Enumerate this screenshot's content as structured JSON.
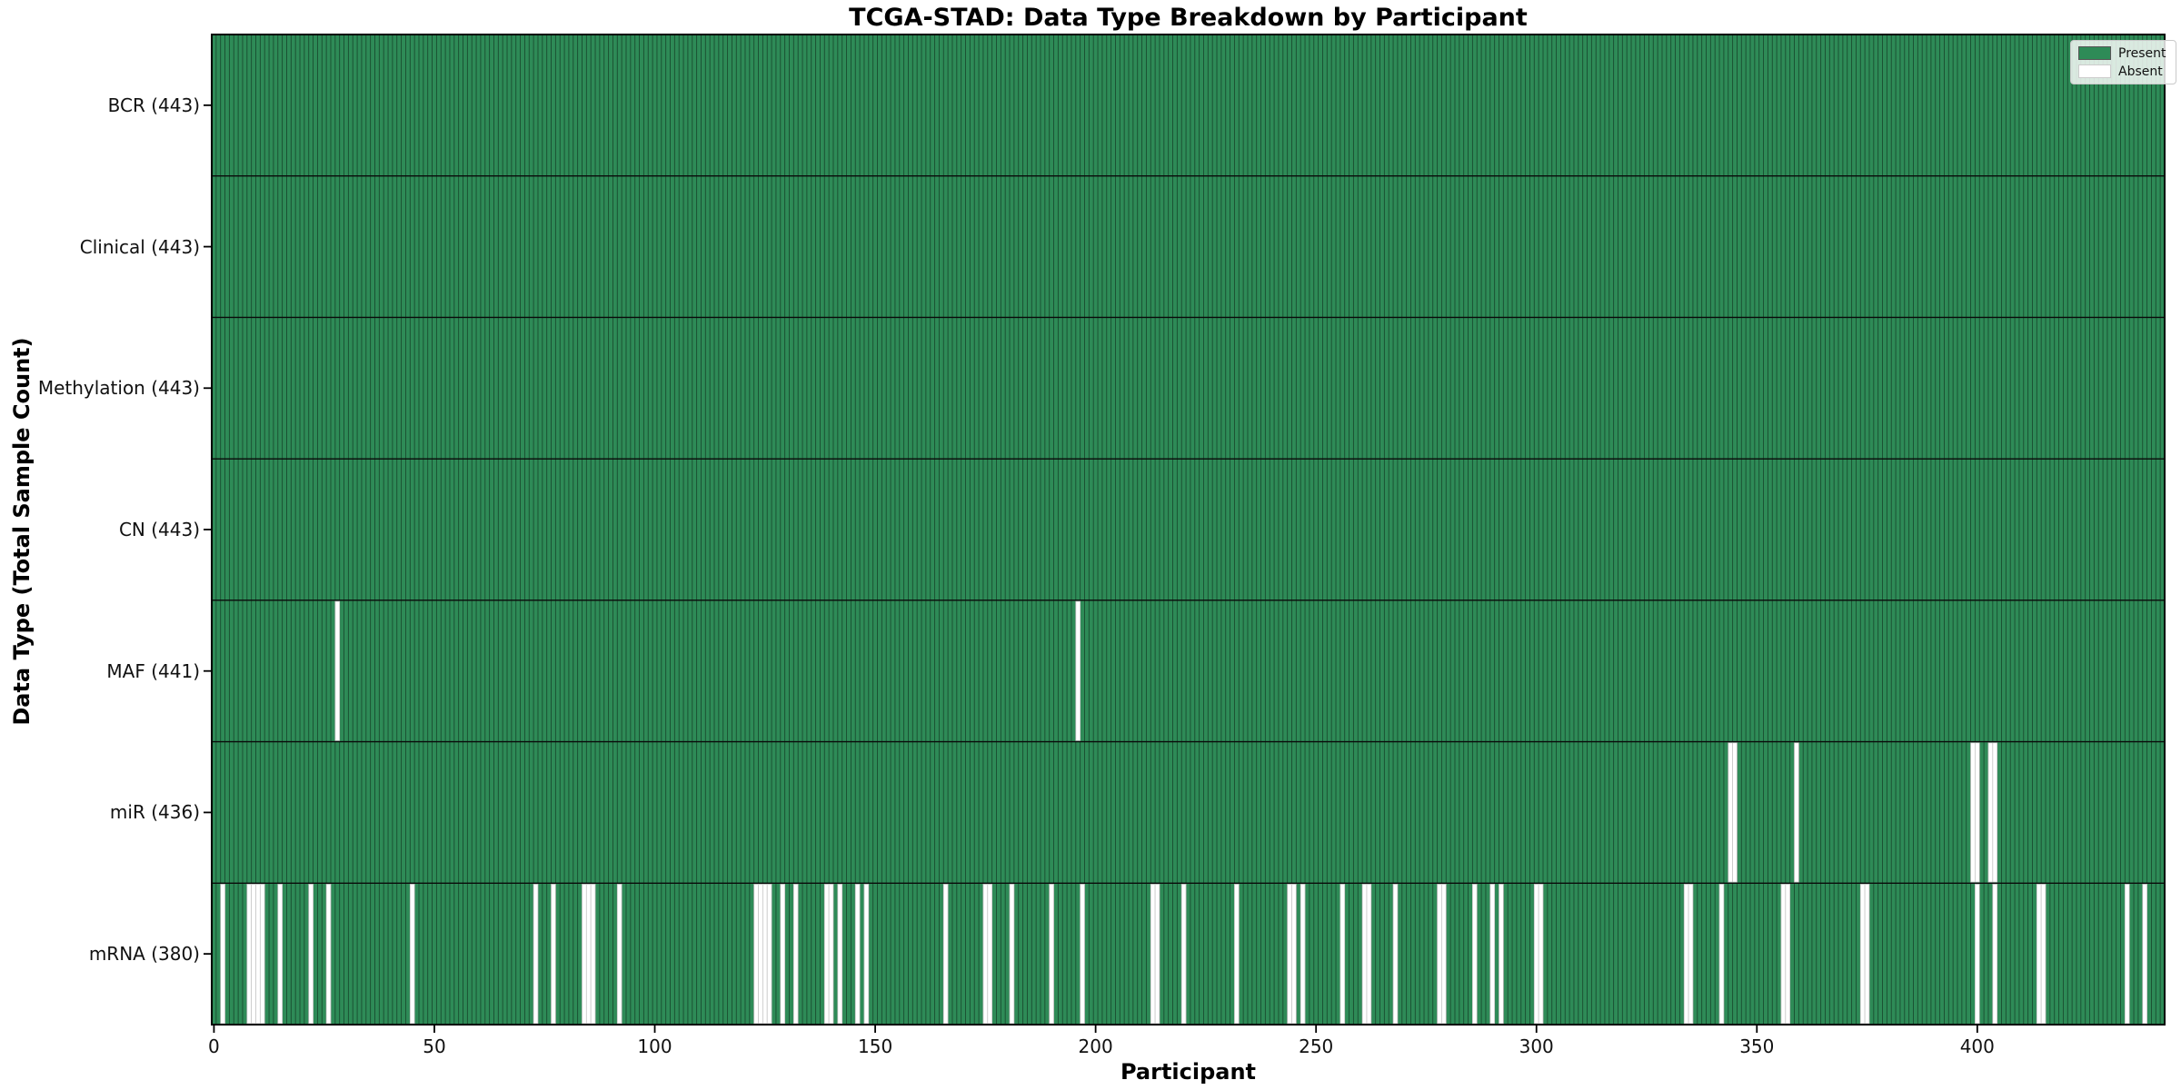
{
  "chart_data": {
    "type": "heatmap",
    "title": "TCGA-STAD: Data Type Breakdown by Participant",
    "xlabel": "Participant",
    "ylabel": "Data Type (Total Sample Count)",
    "n_participants": 443,
    "x_ticks": [
      0,
      50,
      100,
      150,
      200,
      250,
      300,
      350,
      400
    ],
    "grid": false,
    "colors": {
      "present": "#2e8b57",
      "absent": "#ffffff",
      "bar_edge": "rgba(0,0,0,0.45)",
      "absent_edge": "#c7c7c7",
      "separator": "#0a0a0a",
      "border": "#000000"
    },
    "legend": {
      "position": "upper right",
      "entries": [
        {
          "label": "Present",
          "color": "#2e8b57"
        },
        {
          "label": "Absent",
          "color": "#ffffff"
        }
      ]
    },
    "rows": [
      {
        "label": "BCR (443)",
        "data_type": "BCR",
        "present_count": 443,
        "absent_participants": []
      },
      {
        "label": "Clinical (443)",
        "data_type": "Clinical",
        "present_count": 443,
        "absent_participants": []
      },
      {
        "label": "Methylation (443)",
        "data_type": "Methylation",
        "present_count": 443,
        "absent_participants": []
      },
      {
        "label": "CN (443)",
        "data_type": "CN",
        "present_count": 443,
        "absent_participants": []
      },
      {
        "label": "MAF (441)",
        "data_type": "MAF",
        "present_count": 441,
        "absent_participants": [
          28,
          196
        ]
      },
      {
        "label": "miR (436)",
        "data_type": "miR",
        "present_count": 436,
        "absent_participants": [
          344,
          345,
          359,
          399,
          400,
          403,
          404
        ]
      },
      {
        "label": "mRNA (380)",
        "data_type": "mRNA",
        "present_count": 380,
        "absent_participants": [
          2,
          8,
          9,
          10,
          11,
          15,
          22,
          26,
          45,
          73,
          77,
          84,
          85,
          86,
          92,
          123,
          124,
          125,
          126,
          129,
          132,
          139,
          140,
          142,
          146,
          148,
          166,
          175,
          176,
          181,
          190,
          197,
          213,
          214,
          220,
          232,
          244,
          245,
          247,
          256,
          261,
          262,
          268,
          278,
          279,
          286,
          290,
          292,
          300,
          301,
          334,
          335,
          342,
          356,
          357,
          374,
          375,
          400,
          404,
          414,
          415,
          434,
          438
        ]
      }
    ]
  }
}
